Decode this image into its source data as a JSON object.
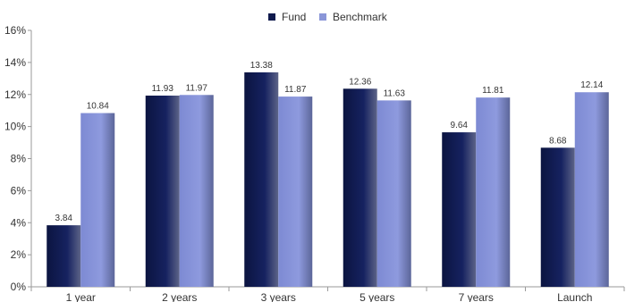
{
  "chart_data": {
    "type": "bar",
    "categories": [
      "1 year",
      "2 years",
      "3 years",
      "5 years",
      "7 years",
      "Launch"
    ],
    "series": [
      {
        "name": "Fund",
        "values": [
          3.84,
          11.93,
          13.38,
          12.36,
          9.64,
          8.68
        ],
        "color": "#0f1a4d"
      },
      {
        "name": "Benchmark",
        "values": [
          10.84,
          11.97,
          11.87,
          11.63,
          11.81,
          12.14
        ],
        "color": "#8a96d8"
      }
    ],
    "data_labels": {
      "Fund": [
        "3.84",
        "11.93",
        "13.38",
        "12.36",
        "9.64",
        "8.68"
      ],
      "Benchmark": [
        "10.84",
        "11.97",
        "11.87",
        "11.63",
        "11.81",
        "12.14"
      ]
    },
    "ylim": [
      0,
      16
    ],
    "yticks": [
      "0%",
      "2%",
      "4%",
      "6%",
      "8%",
      "10%",
      "12%",
      "14%",
      "16%"
    ],
    "ytick_values": [
      0,
      2,
      4,
      6,
      8,
      10,
      12,
      14,
      16
    ],
    "legend_position": "top-center",
    "grid": false
  }
}
